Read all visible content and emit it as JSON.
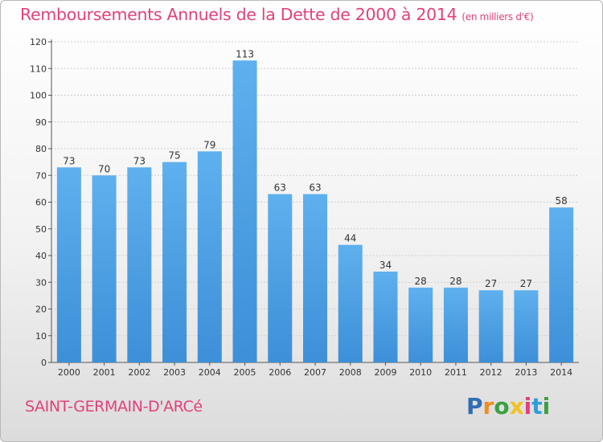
{
  "header": {
    "title": "Remboursements Annuels de la Dette de 2000 à 2014",
    "unit": "(en milliers d'€)"
  },
  "footer": {
    "city": "SAINT-GERMAIN-D'ARCé",
    "logo_letters": [
      "P",
      "r",
      "o",
      "x",
      "i",
      "t",
      "i"
    ],
    "logo_colors": [
      "#2f6db5",
      "#f28c1e",
      "#3aa040",
      "#f2c21e",
      "#e1417b",
      "#2f9ed8",
      "#3aa040"
    ]
  },
  "chart_data": {
    "type": "bar",
    "title": "Remboursements Annuels de la Dette de 2000 à 2014",
    "categories": [
      "2000",
      "2001",
      "2002",
      "2003",
      "2004",
      "2005",
      "2006",
      "2007",
      "2008",
      "2009",
      "2010",
      "2011",
      "2012",
      "2013",
      "2014"
    ],
    "values": [
      73,
      70,
      73,
      75,
      79,
      113,
      63,
      63,
      44,
      34,
      28,
      28,
      27,
      27,
      58
    ],
    "ylim": [
      0,
      120
    ],
    "yticks": [
      0,
      10,
      20,
      30,
      40,
      50,
      60,
      70,
      80,
      90,
      100,
      110,
      120
    ],
    "grid": true,
    "bar_color": "#3d8fd8",
    "bar_color_light": "#5eb0ee"
  }
}
